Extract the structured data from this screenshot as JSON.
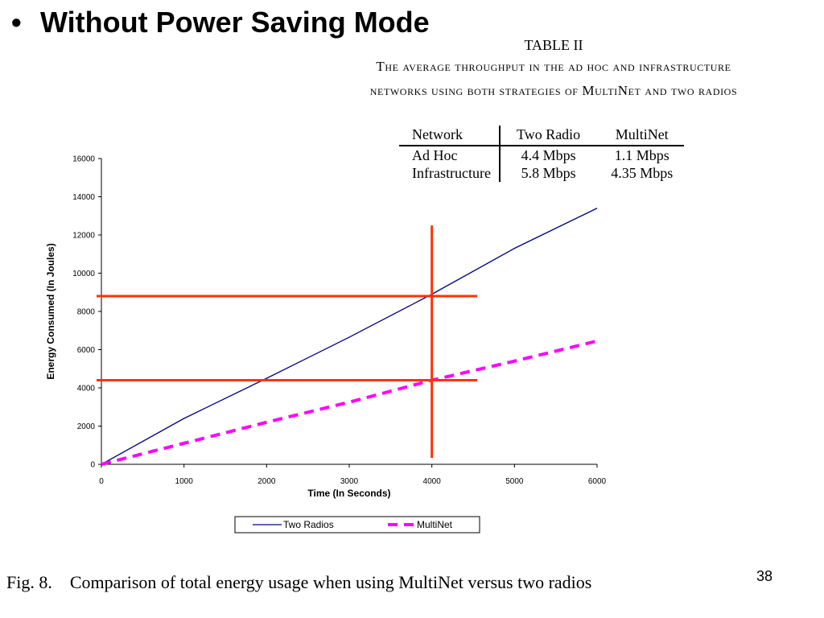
{
  "slide": {
    "bullet": "•",
    "title": "Without Power Saving Mode",
    "page_number": "38"
  },
  "table": {
    "number": "TABLE II",
    "caption_line1": "The average throughput in the ad hoc and infrastructure",
    "caption_line2": "networks using both strategies of MultiNet and two radios",
    "headers": [
      "Network",
      "Two Radio",
      "MultiNet"
    ],
    "rows": [
      [
        "Ad Hoc",
        "4.4 Mbps",
        "1.1 Mbps"
      ],
      [
        "Infrastructure",
        "5.8 Mbps",
        "4.35 Mbps"
      ]
    ]
  },
  "figure_caption": {
    "label": "Fig. 8.",
    "text": "Comparison of total energy usage when using MultiNet versus two radios"
  },
  "chart_data": {
    "type": "line",
    "title": "",
    "xlabel": "Time (In Seconds)",
    "ylabel": "Energy Consumed (In Joules)",
    "xlim": [
      0,
      6000
    ],
    "ylim": [
      0,
      16000
    ],
    "xticks": [
      "0",
      "1000",
      "2000",
      "3000",
      "4000",
      "5000",
      "6000"
    ],
    "yticks": [
      "0",
      "2000",
      "4000",
      "6000",
      "8000",
      "10000",
      "12000",
      "14000",
      "16000"
    ],
    "grid": false,
    "legend_position": "bottom",
    "series": [
      {
        "name": "Two Radios",
        "style": "solid",
        "color": "#000080",
        "x": [
          0,
          1000,
          2000,
          3000,
          4000,
          5000,
          6000
        ],
        "y": [
          0,
          2400,
          4500,
          6650,
          8900,
          11300,
          13400
        ]
      },
      {
        "name": "MultiNet",
        "style": "dashed",
        "color": "#FF00FF",
        "x": [
          0,
          1000,
          2000,
          3000,
          4000,
          5000,
          6000
        ],
        "y": [
          0,
          1100,
          2200,
          3250,
          4400,
          5400,
          6450
        ]
      }
    ],
    "annotations": {
      "color": "#FF3300",
      "vertical_x": 4000,
      "vertical_y_range": [
        0,
        12500
      ],
      "horizontal": [
        {
          "y": 8800,
          "x_range": [
            0,
            4550
          ]
        },
        {
          "y": 4400,
          "x_range": [
            0,
            4550
          ]
        }
      ]
    }
  }
}
